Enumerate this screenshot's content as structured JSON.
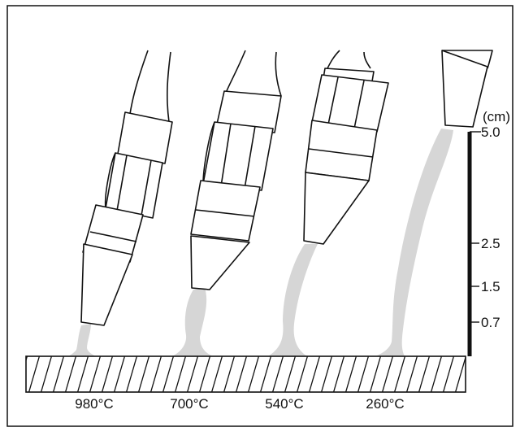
{
  "scale": {
    "unit": "(cm)",
    "ticks": [
      "5.0",
      "2.5",
      "1.5",
      "0.7"
    ]
  },
  "temperatures": [
    "980°C",
    "700°C",
    "540°C",
    "260°C"
  ],
  "colors": {
    "line": "#111111",
    "flame": "#d6d6d6",
    "background": "#ffffff"
  }
}
